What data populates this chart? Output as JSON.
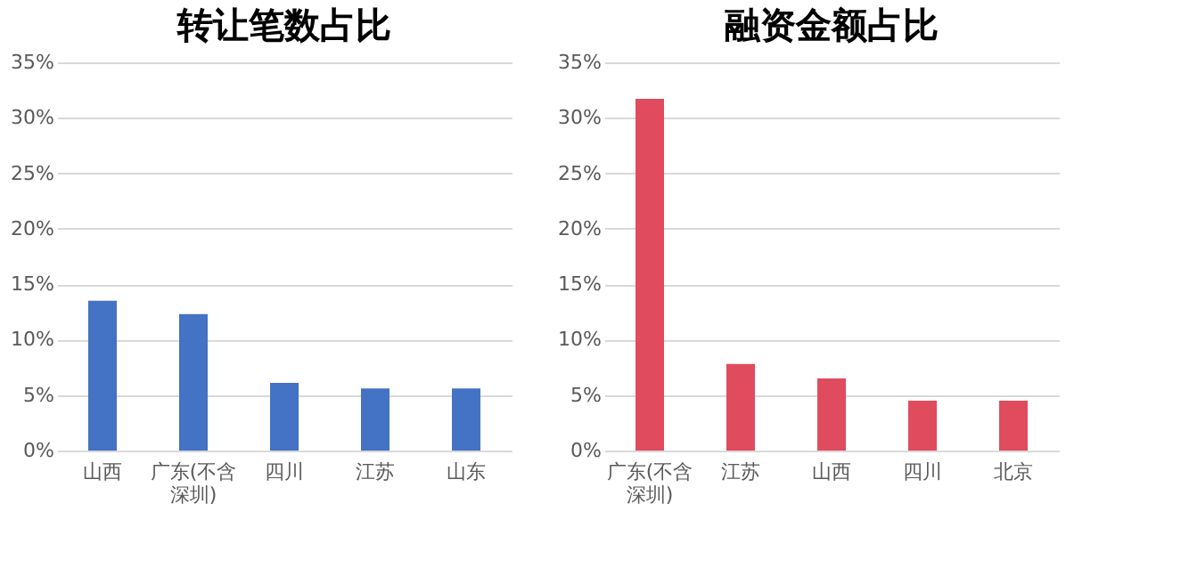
{
  "chart_data": [
    {
      "type": "bar",
      "title": "转让笔数占比",
      "categories": [
        "山西",
        "广东(不含深圳)",
        "四川",
        "江苏",
        "山东"
      ],
      "values": [
        13.5,
        12.3,
        6.1,
        5.6,
        5.6
      ],
      "color": "#4472c4",
      "ylim": [
        0,
        35
      ],
      "yticks": [
        {
          "value": 0,
          "label": "0%"
        },
        {
          "value": 5,
          "label": "5%"
        },
        {
          "value": 10,
          "label": "10%"
        },
        {
          "value": 15,
          "label": "15%"
        },
        {
          "value": 20,
          "label": "20%"
        },
        {
          "value": 25,
          "label": "25%"
        },
        {
          "value": 30,
          "label": "30%"
        },
        {
          "value": 35,
          "label": "35%"
        }
      ],
      "grid": "y"
    },
    {
      "type": "bar",
      "title": "融资金额占比",
      "categories": [
        "广东(不含深圳)",
        "江苏",
        "山西",
        "四川",
        "北京"
      ],
      "values": [
        31.7,
        7.8,
        6.5,
        4.5,
        4.5
      ],
      "color": "#e04b5e",
      "ylim": [
        0,
        35
      ],
      "yticks": [
        {
          "value": 0,
          "label": "0%"
        },
        {
          "value": 5,
          "label": "5%"
        },
        {
          "value": 10,
          "label": "10%"
        },
        {
          "value": 15,
          "label": "15%"
        },
        {
          "value": 20,
          "label": "20%"
        },
        {
          "value": 25,
          "label": "25%"
        },
        {
          "value": 30,
          "label": "30%"
        },
        {
          "value": 35,
          "label": "35%"
        }
      ],
      "grid": "y"
    }
  ]
}
